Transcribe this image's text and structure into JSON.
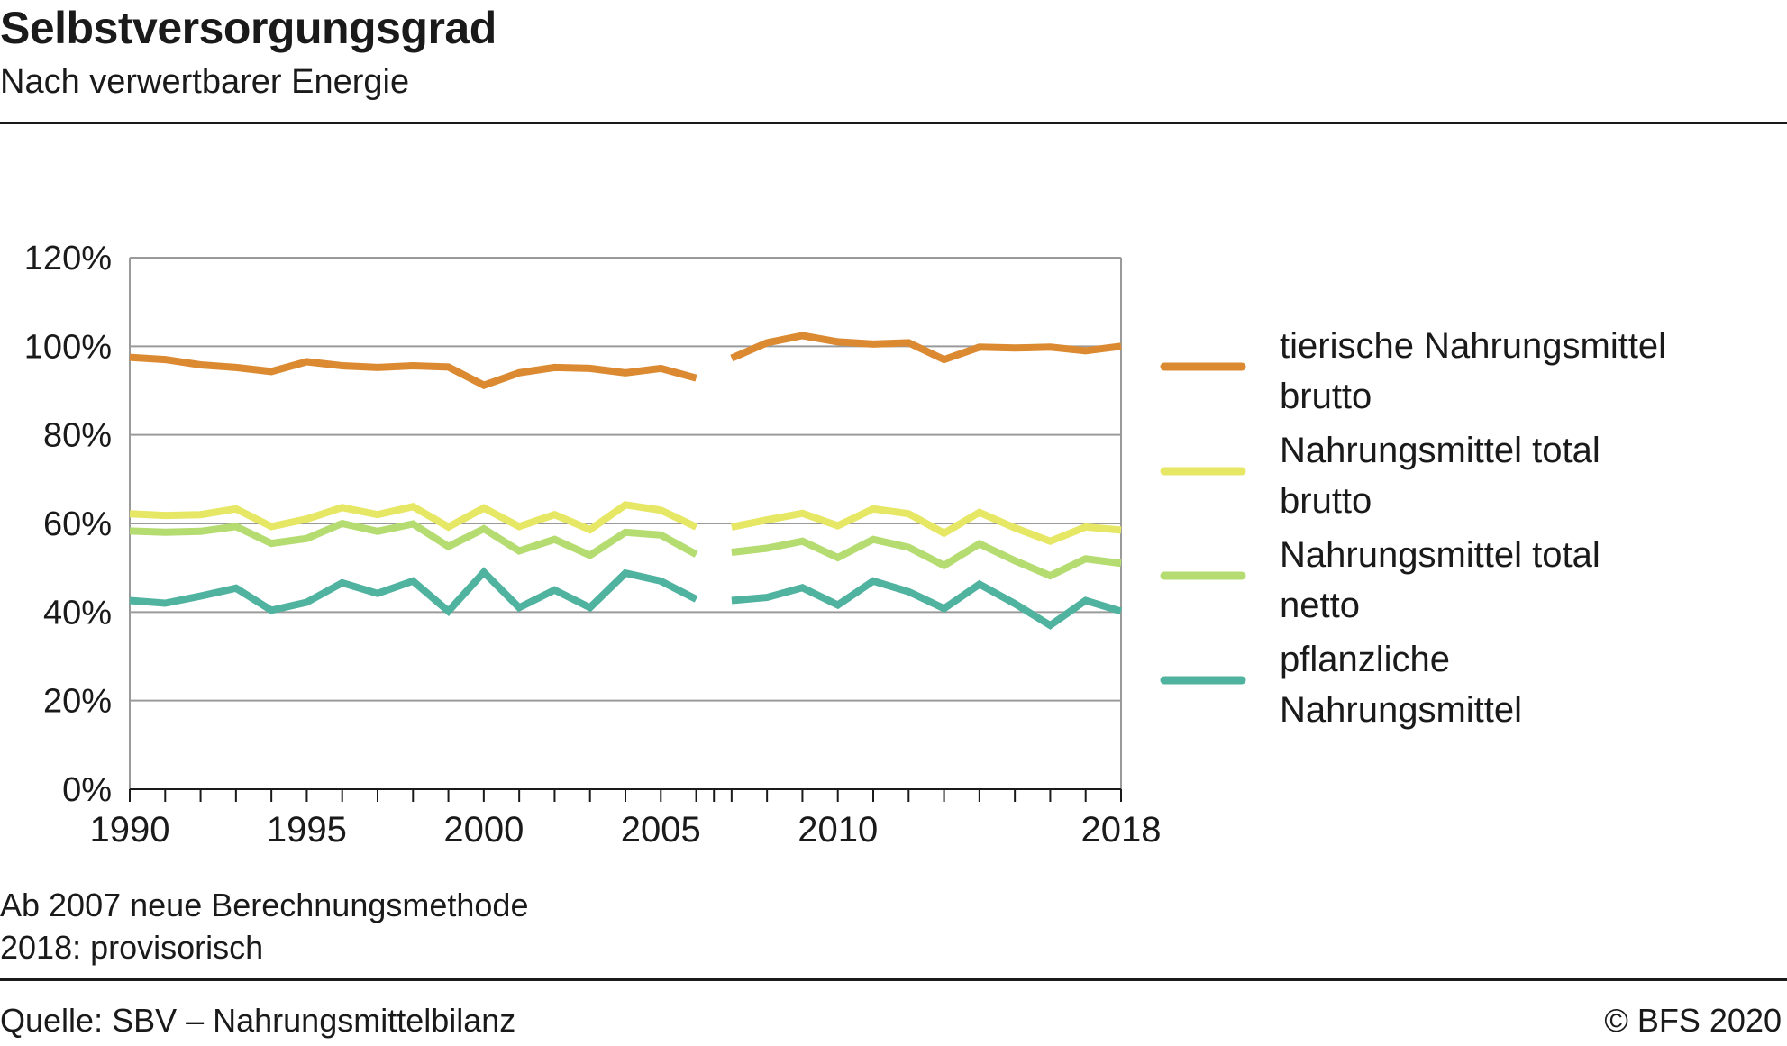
{
  "header": {
    "title": "Selbstversorgungsgrad",
    "subtitle": "Nach verwertbarer Energie"
  },
  "notes": [
    "Ab 2007 neue Berechnungsmethode",
    "2018: provisorisch"
  ],
  "footer": {
    "source": "Quelle: SBV – Nahrungsmittelbilanz",
    "copyright": "© BFS 2020"
  },
  "chart_data": {
    "type": "line",
    "title": "Selbstversorgungsgrad",
    "subtitle": "Nach verwertbarer Energie",
    "xlabel": "",
    "ylabel": "",
    "x": [
      1990,
      1991,
      1992,
      1993,
      1994,
      1995,
      1996,
      1997,
      1998,
      1999,
      2000,
      2001,
      2002,
      2003,
      2004,
      2005,
      2006,
      2007,
      2008,
      2009,
      2010,
      2011,
      2012,
      2013,
      2014,
      2015,
      2016,
      2017,
      2018
    ],
    "xlim": [
      1990,
      2018
    ],
    "ylim": [
      0,
      120
    ],
    "y_ticks": [
      0,
      20,
      40,
      60,
      80,
      100,
      120
    ],
    "y_tick_labels": [
      "0%",
      "20%",
      "40%",
      "60%",
      "80%",
      "100%",
      "120%"
    ],
    "x_tick_labels": [
      {
        "value": 1990,
        "label": "1990"
      },
      {
        "value": 1995,
        "label": "1995"
      },
      {
        "value": 2000,
        "label": "2000"
      },
      {
        "value": 2005,
        "label": "2005"
      },
      {
        "value": 2010,
        "label": "2010"
      },
      {
        "value": 2018,
        "label": "2018"
      }
    ],
    "break_between": [
      2006,
      2007
    ],
    "grid": true,
    "legend_position": "right",
    "series": [
      {
        "name": "tierische Nahrungsmittel brutto",
        "legend_lines": [
          "tierische Nahrungsmittel",
          "brutto"
        ],
        "color": "#dc8a32",
        "values": [
          97.5,
          97,
          95.8,
          95.2,
          94.3,
          96.5,
          95.6,
          95.2,
          95.6,
          95.3,
          91.2,
          94,
          95.2,
          95,
          94,
          95,
          92.8,
          97.3,
          100.8,
          102.4,
          101,
          100.5,
          100.8,
          97,
          99.8,
          99.6,
          99.8,
          99,
          100
        ]
      },
      {
        "name": "Nahrungsmittel total brutto",
        "legend_lines": [
          "Nahrungsmittel total",
          "brutto"
        ],
        "color": "#e6e765",
        "values": [
          62.2,
          61.8,
          62,
          63.3,
          59.3,
          61,
          63.6,
          62,
          63.8,
          59.2,
          63.5,
          59.3,
          62,
          58.6,
          64.2,
          63,
          59.2,
          59.2,
          60.8,
          62.3,
          59.5,
          63.3,
          62.2,
          57.8,
          62.5,
          59,
          56,
          59.2,
          58.5
        ]
      },
      {
        "name": "Nahrungsmittel total netto",
        "legend_lines": [
          "Nahrungsmittel total",
          "netto"
        ],
        "color": "#b5dc70",
        "values": [
          58.3,
          58,
          58.2,
          59.3,
          55.5,
          56.6,
          60,
          58.2,
          59.9,
          54.8,
          58.8,
          53.8,
          56.4,
          52.8,
          58,
          57.4,
          53,
          53.5,
          54.4,
          56,
          52.3,
          56.4,
          54.6,
          50.5,
          55.4,
          51.6,
          48.2,
          52,
          51
        ]
      },
      {
        "name": "pflanzliche Nahrungsmittel",
        "legend_lines": [
          "pflanzliche",
          "Nahrungsmittel"
        ],
        "color": "#4fb39f",
        "values": [
          42.6,
          42,
          43.6,
          45.4,
          40.4,
          42.2,
          46.6,
          44.2,
          47,
          40.2,
          49,
          41,
          45,
          41,
          48.8,
          47,
          42.9,
          42.6,
          43.3,
          45.5,
          41.6,
          47,
          44.6,
          40.8,
          46.3,
          41.9,
          37,
          42.6,
          40.2
        ]
      }
    ]
  }
}
